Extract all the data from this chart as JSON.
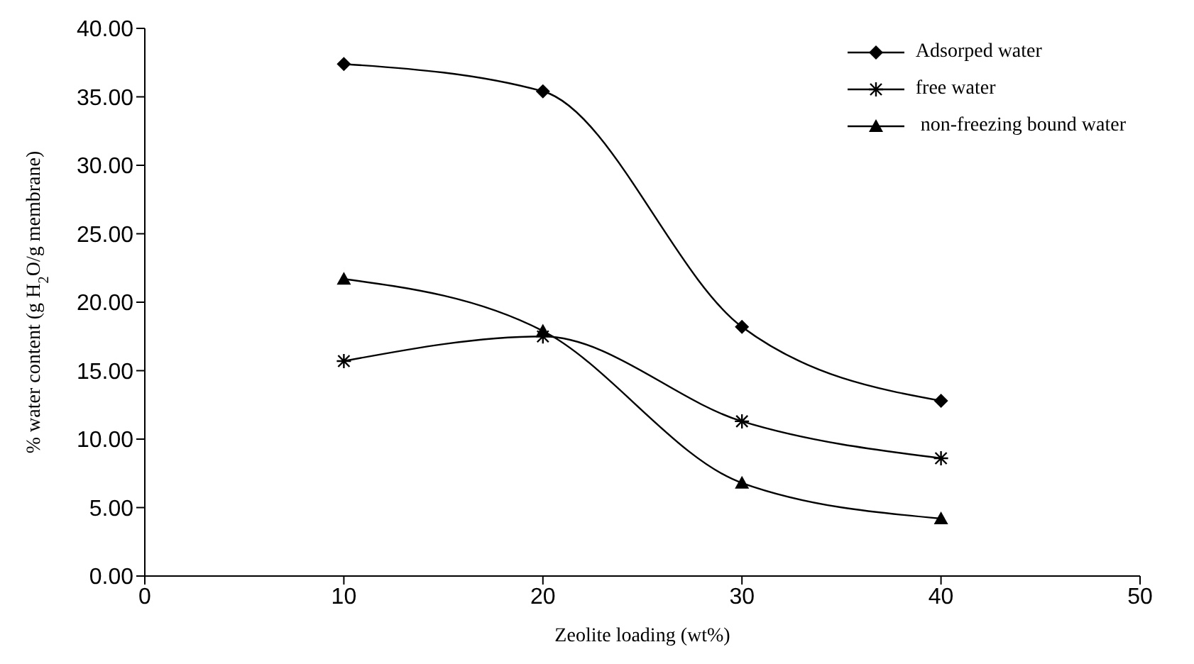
{
  "chart_data": {
    "type": "line",
    "xlabel": "Zeolite loading (wt%)",
    "ylabel": "% water content (g H$_{2}$O/g membrane)",
    "x": [
      10,
      20,
      30,
      40
    ],
    "series": [
      {
        "name": "Adsorped water",
        "color": "#000000",
        "marker": "diamond",
        "values": [
          37.4,
          35.4,
          18.2,
          12.8
        ]
      },
      {
        "name": "free water",
        "color": "#000000",
        "marker": "cross",
        "values": [
          15.7,
          17.5,
          11.3,
          8.6
        ]
      },
      {
        "name": " non-freezing bound water",
        "color": "#000000",
        "marker": "triangle",
        "values": [
          21.7,
          17.9,
          6.8,
          4.2
        ]
      }
    ],
    "xlim": [
      0,
      50
    ],
    "xticks": [
      0,
      10,
      20,
      30,
      40,
      50
    ],
    "ylim": [
      0,
      40
    ],
    "yticks": [
      {
        "value": 0,
        "label": "0.00"
      },
      {
        "value": 5,
        "label": "5.00"
      },
      {
        "value": 10,
        "label": "10.00"
      },
      {
        "value": 15,
        "label": "15.00"
      },
      {
        "value": 20,
        "label": "20.00"
      },
      {
        "value": 25,
        "label": "25.00"
      },
      {
        "value": 30,
        "label": "30.00"
      },
      {
        "value": 35,
        "label": "35.00"
      },
      {
        "value": 40,
        "label": "40.00"
      }
    ],
    "grid": false,
    "legend": "top right",
    "line_style": "solid"
  }
}
